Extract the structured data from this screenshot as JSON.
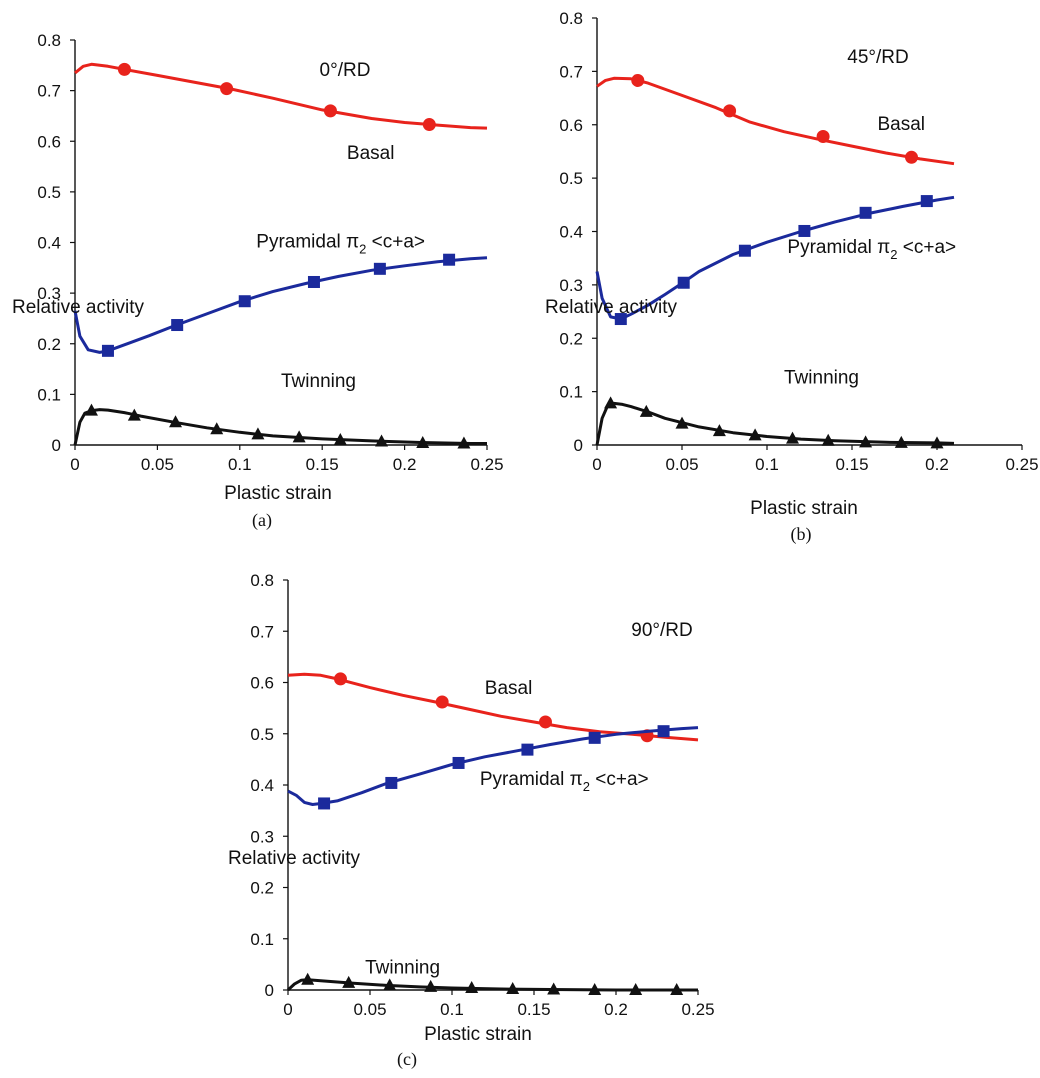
{
  "chart_data": [
    {
      "id": "a",
      "type": "line",
      "caption": "(a)",
      "title": "0°/RD",
      "xlabel": "Plastic strain",
      "ylabel": "Relative activity",
      "xlim": [
        0,
        0.25
      ],
      "ylim": [
        0,
        0.8
      ],
      "xticks": [
        0,
        0.05,
        0.1,
        0.15,
        0.2,
        0.25
      ],
      "xtick_labels": [
        "0",
        "0.05",
        "0.1",
        "0.15",
        "0.2",
        "0.25"
      ],
      "yticks": [
        0,
        0.1,
        0.2,
        0.3,
        0.4,
        0.5,
        0.6,
        0.7,
        0.8
      ],
      "ytick_labels": [
        "0",
        "0.1",
        "0.2",
        "0.3",
        "0.4",
        "0.5",
        "0.6",
        "0.7",
        "0.8"
      ],
      "grid": false,
      "series": [
        {
          "name": "Basal",
          "color": "#e8231c",
          "marker": "circle",
          "x": [
            0,
            0.005,
            0.01,
            0.02,
            0.03,
            0.05,
            0.07,
            0.095,
            0.12,
            0.15,
            0.18,
            0.2,
            0.22,
            0.24,
            0.25
          ],
          "y": [
            0.735,
            0.748,
            0.752,
            0.748,
            0.742,
            0.73,
            0.718,
            0.703,
            0.685,
            0.662,
            0.645,
            0.637,
            0.632,
            0.627,
            0.626
          ],
          "marker_x": [
            0.03,
            0.092,
            0.155,
            0.215
          ],
          "marker_y": [
            0.742,
            0.704,
            0.66,
            0.633
          ],
          "label_x": 0.165,
          "label_y": 0.565
        },
        {
          "name": "Pyramidal π₂ <c+a>",
          "name_base": "Pyramidal π",
          "name_sub": "2",
          "name_tail": " <c+a>",
          "color": "#1b2a9c",
          "marker": "square",
          "x": [
            0,
            0.003,
            0.008,
            0.015,
            0.02,
            0.03,
            0.045,
            0.06,
            0.08,
            0.1,
            0.12,
            0.14,
            0.16,
            0.18,
            0.2,
            0.22,
            0.24,
            0.25
          ],
          "y": [
            0.265,
            0.215,
            0.188,
            0.183,
            0.186,
            0.198,
            0.216,
            0.235,
            0.259,
            0.283,
            0.303,
            0.319,
            0.333,
            0.345,
            0.354,
            0.362,
            0.368,
            0.37
          ],
          "marker_x": [
            0.02,
            0.062,
            0.103,
            0.145,
            0.185,
            0.227
          ],
          "marker_y": [
            0.186,
            0.237,
            0.284,
            0.322,
            0.348,
            0.366
          ],
          "label_x": 0.11,
          "label_y": 0.39
        },
        {
          "name": "Twinning",
          "color": "#111111",
          "marker": "triangle",
          "x": [
            0,
            0.003,
            0.006,
            0.01,
            0.015,
            0.02,
            0.03,
            0.04,
            0.06,
            0.08,
            0.1,
            0.12,
            0.15,
            0.18,
            0.21,
            0.24,
            0.25
          ],
          "y": [
            0.0,
            0.045,
            0.063,
            0.068,
            0.07,
            0.069,
            0.064,
            0.057,
            0.045,
            0.034,
            0.025,
            0.018,
            0.012,
            0.008,
            0.005,
            0.003,
            0.003
          ],
          "marker_x": [
            0.01,
            0.036,
            0.061,
            0.086,
            0.111,
            0.136,
            0.161,
            0.186,
            0.211,
            0.236
          ],
          "marker_y": [
            0.068,
            0.058,
            0.045,
            0.031,
            0.021,
            0.015,
            0.01,
            0.007,
            0.004,
            0.003
          ],
          "label_x": 0.125,
          "label_y": 0.115
        }
      ]
    },
    {
      "id": "b",
      "type": "line",
      "caption": "(b)",
      "title": "45°/RD",
      "xlabel": "Plastic strain",
      "ylabel": "Relative activity",
      "xlim": [
        0,
        0.25
      ],
      "ylim": [
        0,
        0.8
      ],
      "xticks": [
        0,
        0.05,
        0.1,
        0.15,
        0.2,
        0.25
      ],
      "xtick_labels": [
        "0",
        "0.05",
        "0.1",
        "0.15",
        "0.2",
        "0.25"
      ],
      "yticks": [
        0,
        0.1,
        0.2,
        0.3,
        0.4,
        0.5,
        0.6,
        0.7,
        0.8
      ],
      "ytick_labels": [
        "0",
        "0.1",
        "0.2",
        "0.3",
        "0.4",
        "0.5",
        "0.6",
        "0.7",
        "0.8"
      ],
      "grid": false,
      "series": [
        {
          "name": "Basal",
          "color": "#e8231c",
          "marker": "circle",
          "x": [
            0,
            0.005,
            0.01,
            0.02,
            0.03,
            0.05,
            0.07,
            0.09,
            0.11,
            0.13,
            0.15,
            0.17,
            0.19,
            0.21
          ],
          "y": [
            0.672,
            0.683,
            0.687,
            0.686,
            0.678,
            0.655,
            0.632,
            0.605,
            0.587,
            0.573,
            0.56,
            0.547,
            0.536,
            0.527
          ],
          "marker_x": [
            0.024,
            0.078,
            0.133,
            0.185
          ],
          "marker_y": [
            0.683,
            0.626,
            0.578,
            0.539
          ],
          "label_x": 0.165,
          "label_y": 0.59
        },
        {
          "name": "Pyramidal π₂ <c+a>",
          "name_base": "Pyramidal π",
          "name_sub": "2",
          "name_tail": " <c+a>",
          "color": "#1b2a9c",
          "marker": "square",
          "x": [
            0,
            0.003,
            0.008,
            0.014,
            0.02,
            0.03,
            0.04,
            0.05,
            0.06,
            0.08,
            0.1,
            0.12,
            0.14,
            0.16,
            0.18,
            0.2,
            0.21
          ],
          "y": [
            0.325,
            0.275,
            0.24,
            0.236,
            0.245,
            0.262,
            0.282,
            0.303,
            0.325,
            0.357,
            0.38,
            0.4,
            0.418,
            0.434,
            0.447,
            0.459,
            0.464
          ],
          "marker_x": [
            0.014,
            0.051,
            0.087,
            0.122,
            0.158,
            0.194
          ],
          "marker_y": [
            0.236,
            0.304,
            0.364,
            0.401,
            0.435,
            0.457
          ],
          "label_x": 0.112,
          "label_y": 0.36
        },
        {
          "name": "Twinning",
          "color": "#111111",
          "marker": "triangle",
          "x": [
            0,
            0.003,
            0.006,
            0.01,
            0.015,
            0.02,
            0.03,
            0.04,
            0.06,
            0.08,
            0.1,
            0.12,
            0.14,
            0.17,
            0.2,
            0.21
          ],
          "y": [
            0.0,
            0.05,
            0.072,
            0.078,
            0.076,
            0.072,
            0.062,
            0.05,
            0.034,
            0.023,
            0.016,
            0.011,
            0.008,
            0.005,
            0.004,
            0.003
          ],
          "marker_x": [
            0.008,
            0.029,
            0.05,
            0.072,
            0.093,
            0.115,
            0.136,
            0.158,
            0.179,
            0.2
          ],
          "marker_y": [
            0.078,
            0.062,
            0.04,
            0.026,
            0.018,
            0.012,
            0.008,
            0.005,
            0.004,
            0.003
          ],
          "label_x": 0.11,
          "label_y": 0.115
        }
      ]
    },
    {
      "id": "c",
      "type": "line",
      "caption": "(c)",
      "title": "90°/RD",
      "xlabel": "Plastic strain",
      "ylabel": "Relative activity",
      "xlim": [
        0,
        0.25
      ],
      "ylim": [
        0,
        0.8
      ],
      "xticks": [
        0,
        0.05,
        0.1,
        0.15,
        0.2,
        0.25
      ],
      "xtick_labels": [
        "0",
        "0.05",
        "0.1",
        "0.15",
        "0.2",
        "0.25"
      ],
      "yticks": [
        0,
        0.1,
        0.2,
        0.3,
        0.4,
        0.5,
        0.6,
        0.7,
        0.8
      ],
      "ytick_labels": [
        "0",
        "0.1",
        "0.2",
        "0.3",
        "0.4",
        "0.5",
        "0.6",
        "0.7",
        "0.8"
      ],
      "grid": false,
      "series": [
        {
          "name": "Basal",
          "color": "#e8231c",
          "marker": "circle",
          "x": [
            0,
            0.01,
            0.02,
            0.03,
            0.05,
            0.07,
            0.09,
            0.11,
            0.13,
            0.15,
            0.17,
            0.19,
            0.21,
            0.23,
            0.25
          ],
          "y": [
            0.614,
            0.616,
            0.614,
            0.607,
            0.59,
            0.575,
            0.562,
            0.548,
            0.534,
            0.523,
            0.512,
            0.504,
            0.499,
            0.493,
            0.488
          ],
          "marker_x": [
            0.032,
            0.094,
            0.157,
            0.219
          ],
          "marker_y": [
            0.607,
            0.562,
            0.523,
            0.496
          ],
          "label_x": 0.12,
          "label_y": 0.578
        },
        {
          "name": "Pyramidal π₂ <c+a>",
          "name_base": "Pyramidal π",
          "name_sub": "2",
          "name_tail": " <c+a>",
          "color": "#1b2a9c",
          "marker": "square",
          "x": [
            0,
            0.005,
            0.01,
            0.015,
            0.02,
            0.03,
            0.045,
            0.06,
            0.08,
            0.1,
            0.12,
            0.14,
            0.16,
            0.18,
            0.2,
            0.22,
            0.24,
            0.25
          ],
          "y": [
            0.388,
            0.38,
            0.366,
            0.362,
            0.364,
            0.369,
            0.385,
            0.403,
            0.421,
            0.44,
            0.455,
            0.467,
            0.479,
            0.49,
            0.499,
            0.505,
            0.51,
            0.512
          ],
          "marker_x": [
            0.022,
            0.063,
            0.104,
            0.146,
            0.187,
            0.229
          ],
          "marker_y": [
            0.364,
            0.404,
            0.443,
            0.469,
            0.492,
            0.505
          ],
          "label_x": 0.117,
          "label_y": 0.4
        },
        {
          "name": "Twinning",
          "color": "#111111",
          "marker": "triangle",
          "x": [
            0,
            0.004,
            0.008,
            0.012,
            0.02,
            0.04,
            0.06,
            0.08,
            0.1,
            0.13,
            0.16,
            0.2,
            0.25
          ],
          "y": [
            0.0,
            0.012,
            0.019,
            0.02,
            0.018,
            0.013,
            0.009,
            0.006,
            0.004,
            0.002,
            0.001,
            0.0,
            0.0
          ],
          "marker_x": [
            0.012,
            0.037,
            0.062,
            0.087,
            0.112,
            0.137,
            0.162,
            0.187,
            0.212,
            0.237
          ],
          "marker_y": [
            0.02,
            0.014,
            0.009,
            0.006,
            0.004,
            0.002,
            0.001,
            0.0,
            0.0,
            0.0
          ],
          "label_x": 0.047,
          "label_y": 0.032
        }
      ]
    }
  ]
}
